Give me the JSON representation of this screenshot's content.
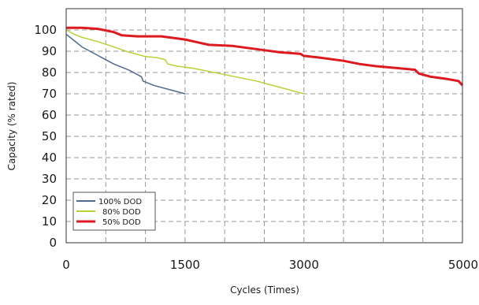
{
  "chart_data": {
    "type": "line",
    "title": "",
    "xlabel": "Cycles (Times)",
    "ylabel": "Capacity (% rated)",
    "xlim": [
      0,
      5000
    ],
    "ylim": [
      0,
      110
    ],
    "x_ticks": [
      0,
      1500,
      3000,
      5000
    ],
    "x_tick_labels": [
      "0",
      "1500",
      "3000",
      "5000"
    ],
    "x_grid": [
      500,
      1000,
      1500,
      2000,
      2500,
      3000,
      3500,
      4000,
      4500
    ],
    "y_ticks": [
      0,
      10,
      20,
      30,
      40,
      50,
      60,
      70,
      80,
      90,
      100
    ],
    "y_tick_labels": [
      "0",
      "10",
      "20",
      "30",
      "40",
      "50",
      "60",
      "70",
      "80",
      "90",
      "100"
    ],
    "grid": true,
    "legend_position": "bottom-left",
    "series": [
      {
        "name": "100% DOD",
        "color": "#4e6a8c",
        "points": [
          [
            0,
            98
          ],
          [
            100,
            95
          ],
          [
            200,
            92
          ],
          [
            400,
            88
          ],
          [
            600,
            84
          ],
          [
            800,
            81
          ],
          [
            900,
            79
          ],
          [
            950,
            78
          ],
          [
            970,
            76
          ],
          [
            1000,
            75.5
          ],
          [
            1100,
            74
          ],
          [
            1300,
            72
          ],
          [
            1500,
            70
          ]
        ]
      },
      {
        "name": "80% DOD",
        "color": "#b5d334",
        "points": [
          [
            0,
            100
          ],
          [
            100,
            98
          ],
          [
            200,
            96.5
          ],
          [
            400,
            94.5
          ],
          [
            600,
            92
          ],
          [
            800,
            89.5
          ],
          [
            1000,
            87.5
          ],
          [
            1150,
            87
          ],
          [
            1250,
            86
          ],
          [
            1280,
            84
          ],
          [
            1400,
            83
          ],
          [
            1600,
            82
          ],
          [
            2000,
            79
          ],
          [
            2400,
            76
          ],
          [
            2700,
            73
          ],
          [
            3000,
            70
          ]
        ]
      },
      {
        "name": "50% DOD",
        "color": "#dd1a1f",
        "points": [
          [
            0,
            101
          ],
          [
            200,
            101
          ],
          [
            400,
            100.5
          ],
          [
            600,
            99
          ],
          [
            700,
            97.5
          ],
          [
            900,
            97
          ],
          [
            1200,
            97
          ],
          [
            1500,
            95.5
          ],
          [
            1800,
            93
          ],
          [
            2100,
            92.5
          ],
          [
            2400,
            91
          ],
          [
            2500,
            90.5
          ],
          [
            2700,
            89.5
          ],
          [
            2950,
            88.8
          ],
          [
            3000,
            87.8
          ],
          [
            3200,
            87
          ],
          [
            3500,
            85.5
          ],
          [
            3700,
            84
          ],
          [
            3900,
            83
          ],
          [
            4200,
            82
          ],
          [
            4400,
            81.3
          ],
          [
            4450,
            79.5
          ],
          [
            4600,
            78
          ],
          [
            4800,
            77
          ],
          [
            4950,
            76
          ],
          [
            5000,
            74
          ]
        ]
      }
    ]
  }
}
